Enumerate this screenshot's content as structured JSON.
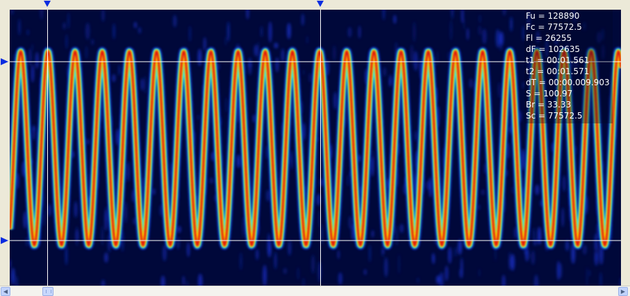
{
  "window": {
    "title": ""
  },
  "spectrogram": {
    "colors": {
      "background": "#00083a",
      "noise": "#1830c8",
      "signal_outer": "#1be0ff",
      "signal_mid": "#ffe000",
      "signal_core": "#e0180a",
      "cursor_line": "#ffffff",
      "marker": "#0a2ce0"
    },
    "cycles_visible": 22.5
  },
  "readout": {
    "fu": "Fu = 128890",
    "fc": "Fc = 77572.5",
    "fl": "Fl = 26255",
    "df": "dF = 102635",
    "t1": "t1 = 00:01.561",
    "t2": "t2 = 00:01.571",
    "dt": "dT = 00:00.009.903",
    "s": "S = 100.97",
    "br": "Br = 33.33",
    "sc": "Sc = 77572.5"
  },
  "scrollbar": {
    "left_arrow_icon": "arrow-left-icon",
    "right_arrow_icon": "arrow-right-icon"
  }
}
